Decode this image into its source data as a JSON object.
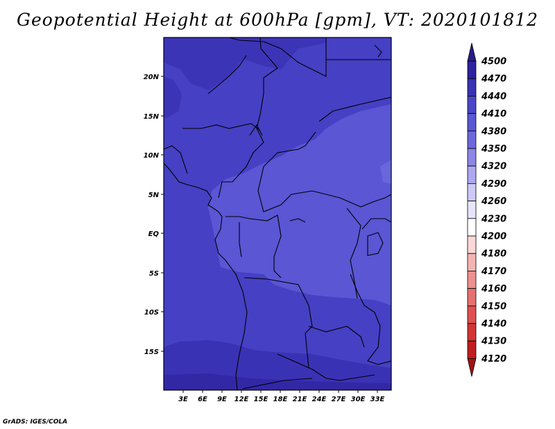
{
  "title": "Geopotential Height at 600hPa [gpm], VT: 2020101812",
  "credit": "GrADS: IGES/COLA",
  "map": {
    "lat_labels": [
      "20N",
      "15N",
      "10N",
      "5N",
      "EQ",
      "5S",
      "10S",
      "15S"
    ],
    "lon_labels": [
      "3E",
      "6E",
      "9E",
      "12E",
      "15E",
      "18E",
      "21E",
      "24E",
      "27E",
      "30E",
      "33E"
    ]
  },
  "colorbar": {
    "levels": [
      "4500",
      "4470",
      "4440",
      "4410",
      "4380",
      "4350",
      "4320",
      "4290",
      "4260",
      "4230",
      "4200",
      "4180",
      "4170",
      "4160",
      "4150",
      "4140",
      "4130",
      "4120"
    ],
    "colors": [
      "#2a1a8c",
      "#2f22a0",
      "#3a32b4",
      "#4a46c8",
      "#5a58d4",
      "#6c68dc",
      "#8c86e6",
      "#aea8f0",
      "#cdc8f6",
      "#e6e4fa",
      "#ffffff",
      "#fad8d8",
      "#f4b4b4",
      "#ee9090",
      "#e67070",
      "#e05050",
      "#d43434",
      "#c01e1e",
      "#a01414"
    ]
  }
}
